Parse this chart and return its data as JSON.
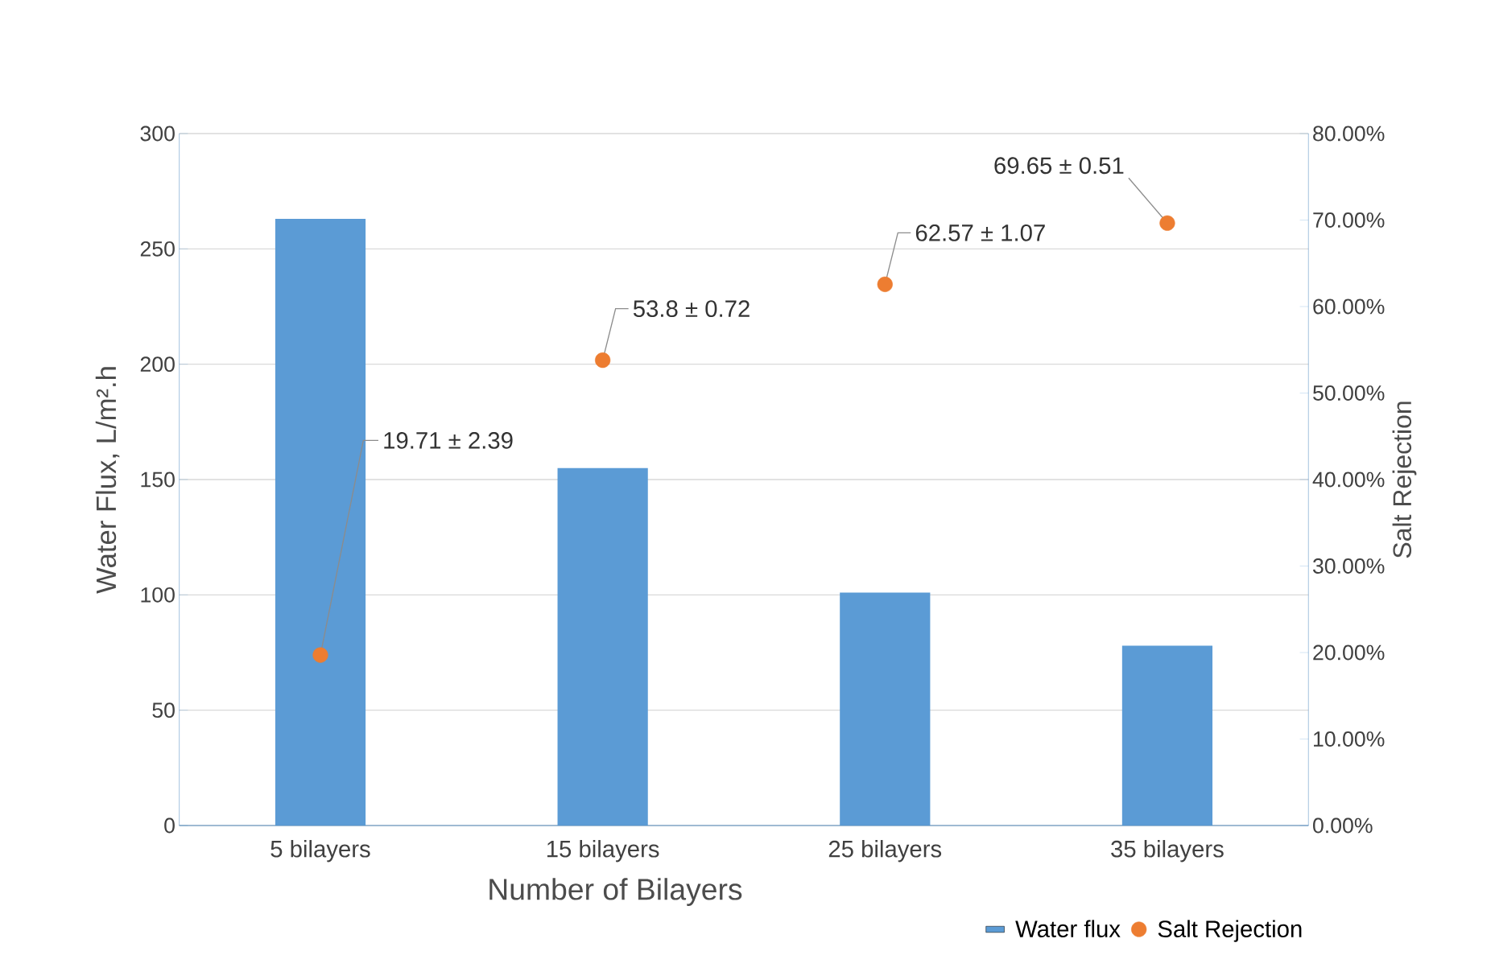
{
  "chart_data": {
    "type": "bar",
    "xlabel": "Number of Bilayers",
    "ylabel": "Water Flux, L/m².h",
    "y2label": "Salt Rejection",
    "categories": [
      "5 bilayers",
      "15 bilayers",
      "25 bilayers",
      "35 bilayers"
    ],
    "series": [
      {
        "name": "Water flux",
        "color": "#5b9bd5",
        "values": [
          263,
          155,
          101,
          78
        ]
      },
      {
        "name": "Salt Rejection",
        "type": "scatter",
        "axis": "y2",
        "color": "#ed7d31",
        "values": [
          19.71,
          53.8,
          62.57,
          69.65
        ],
        "value_labels": [
          "19.71 ± 2.39",
          "53.8 ± 0.72",
          "62.57 ± 1.07",
          "69.65 ± 0.51"
        ]
      }
    ],
    "ylim": [
      0,
      300
    ],
    "yticks": [
      0,
      50,
      100,
      150,
      200,
      250,
      300
    ],
    "y2lim": [
      0,
      80
    ],
    "y2ticks": [
      {
        "value": 0,
        "label": "0.00%"
      },
      {
        "value": 10,
        "label": "10.00%"
      },
      {
        "value": 20,
        "label": "20.00%"
      },
      {
        "value": 30,
        "label": "30.00%"
      },
      {
        "value": 40,
        "label": "40.00%"
      },
      {
        "value": 50,
        "label": "50.00%"
      },
      {
        "value": 60,
        "label": "60.00%"
      },
      {
        "value": 70,
        "label": "70.00%"
      },
      {
        "value": 80,
        "label": "80.00%"
      }
    ],
    "grid": "y",
    "legend": "bottom right"
  }
}
